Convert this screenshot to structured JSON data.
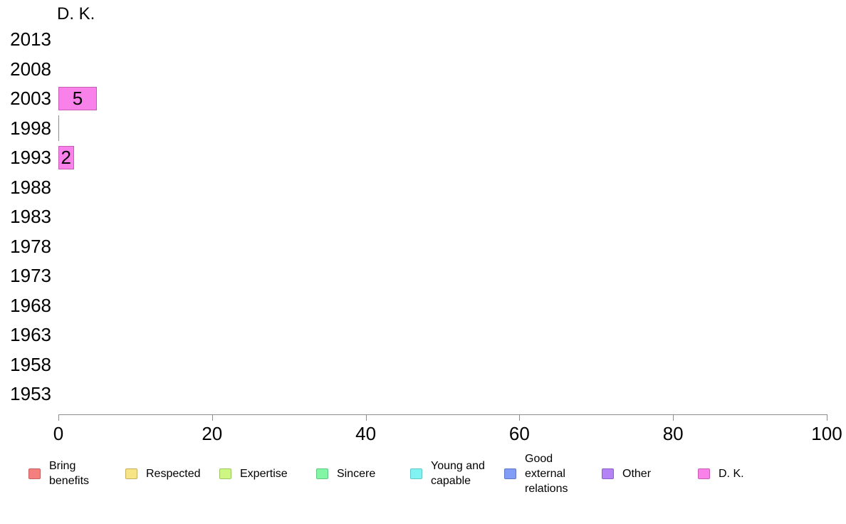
{
  "chart_data": {
    "type": "bar",
    "orientation": "horizontal",
    "title": "D. K.",
    "categories": [
      "2013",
      "2008",
      "2003",
      "1998",
      "1993",
      "1988",
      "1983",
      "1978",
      "1973",
      "1968",
      "1963",
      "1958",
      "1953"
    ],
    "series": [
      {
        "name": "D. K.",
        "color": "#F982EA",
        "border_color": "#C75BB5",
        "values": [
          null,
          null,
          5,
          0,
          2,
          null,
          null,
          null,
          null,
          null,
          null,
          null,
          null
        ]
      }
    ],
    "xlim": [
      0,
      100
    ],
    "x_ticks": [
      "0",
      "20",
      "40",
      "60",
      "80",
      "100"
    ],
    "grid": false,
    "legend_position": "bottom",
    "axis_color": "#8C8C8C",
    "zero_bar_color": "#8C8C8C",
    "legend": [
      {
        "label": "Bring benefits",
        "lines": [
          "Bring",
          "benefits"
        ],
        "fill": "#F47F7F",
        "border": "#C75F5F"
      },
      {
        "label": "Respected",
        "lines": [
          "Respected"
        ],
        "fill": "#F6E486",
        "border": "#C7AE5F"
      },
      {
        "label": "Expertise",
        "lines": [
          "Expertise"
        ],
        "fill": "#CEF682",
        "border": "#9BC75F"
      },
      {
        "label": "Sincere",
        "lines": [
          "Sincere"
        ],
        "fill": "#82F6A4",
        "border": "#5FC77F"
      },
      {
        "label": "Young and capable",
        "lines": [
          "Young and",
          "capable"
        ],
        "fill": "#82F3F3",
        "border": "#5FC7C7"
      },
      {
        "label": "Good external relations",
        "lines": [
          "Good",
          "external",
          "relations"
        ],
        "fill": "#829DF6",
        "border": "#5F77C7"
      },
      {
        "label": "Other",
        "lines": [
          "Other"
        ],
        "fill": "#B483F6",
        "border": "#8A5FC7"
      },
      {
        "label": "D. K.",
        "lines": [
          "D. K."
        ],
        "fill": "#F982EA",
        "border": "#C75BB5"
      }
    ]
  }
}
